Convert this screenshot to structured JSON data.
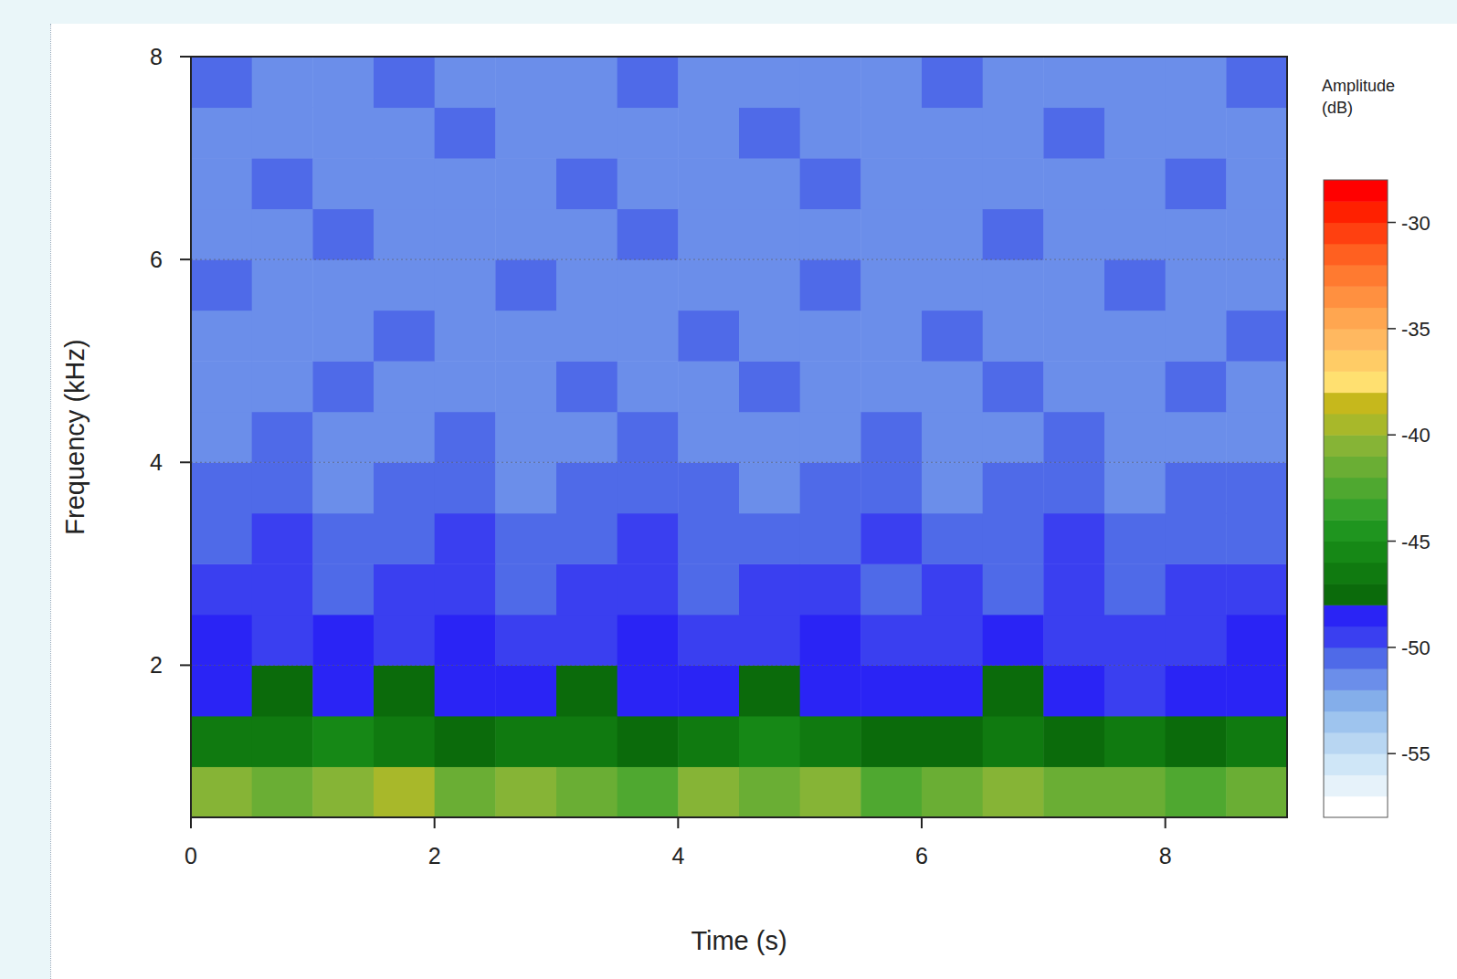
{
  "chart_data": {
    "type": "heatmap",
    "x_label": "Time (s)",
    "y_label": "Frequency (kHz)",
    "xlim": [
      0,
      9
    ],
    "ylim": [
      0.5,
      8
    ],
    "xticks": [
      0,
      2,
      4,
      6,
      8
    ],
    "yticks": [
      2,
      4,
      6,
      8
    ],
    "grid": true,
    "x": [
      0.25,
      0.75,
      1.25,
      1.75,
      2.25,
      2.75,
      3.25,
      3.75,
      4.25,
      4.75,
      5.25,
      5.75,
      6.25,
      6.75,
      7.25,
      7.75,
      8.25,
      8.75
    ],
    "y": [
      0.75,
      1.25,
      1.75,
      2.25,
      2.75,
      3.25,
      3.75,
      4.25,
      4.75,
      5.25,
      5.75,
      6.25,
      6.75,
      7.25,
      7.75
    ],
    "z": [
      [
        -41,
        -42,
        -41,
        -40,
        -42,
        -41,
        -42,
        -43,
        -41,
        -42,
        -41,
        -43,
        -42,
        -41,
        -42,
        -42,
        -43,
        -42
      ],
      [
        -47,
        -47,
        -46,
        -47,
        -48,
        -47,
        -47,
        -48,
        -47,
        -46,
        -47,
        -48,
        -48,
        -47,
        -48,
        -47,
        -48,
        -47
      ],
      [
        -49,
        -48,
        -49,
        -48,
        -49,
        -49,
        -48,
        -49,
        -49,
        -48,
        -49,
        -49,
        -49,
        -48,
        -49,
        -50,
        -49,
        -49
      ],
      [
        -49,
        -50,
        -49,
        -50,
        -49,
        -50,
        -50,
        -49,
        -50,
        -50,
        -49,
        -50,
        -50,
        -49,
        -50,
        -50,
        -50,
        -49
      ],
      [
        -50,
        -50,
        -51,
        -50,
        -50,
        -51,
        -50,
        -50,
        -51,
        -50,
        -50,
        -51,
        -50,
        -51,
        -50,
        -51,
        -50,
        -50
      ],
      [
        -51,
        -50,
        -51,
        -51,
        -50,
        -51,
        -51,
        -50,
        -51,
        -51,
        -51,
        -50,
        -51,
        -51,
        -50,
        -51,
        -51,
        -51
      ],
      [
        -51,
        -51,
        -52,
        -51,
        -51,
        -52,
        -51,
        -51,
        -51,
        -52,
        -51,
        -51,
        -52,
        -51,
        -51,
        -52,
        -51,
        -51
      ],
      [
        -52,
        -51,
        -52,
        -52,
        -51,
        -52,
        -52,
        -51,
        -52,
        -52,
        -52,
        -51,
        -52,
        -52,
        -51,
        -52,
        -52,
        -52
      ],
      [
        -52,
        -52,
        -51,
        -52,
        -52,
        -52,
        -51,
        -52,
        -52,
        -51,
        -52,
        -52,
        -52,
        -51,
        -52,
        -52,
        -51,
        -52
      ],
      [
        -52,
        -52,
        -52,
        -51,
        -52,
        -52,
        -52,
        -52,
        -51,
        -52,
        -52,
        -52,
        -51,
        -52,
        -52,
        -52,
        -52,
        -51
      ],
      [
        -51,
        -52,
        -52,
        -52,
        -52,
        -51,
        -52,
        -52,
        -52,
        -52,
        -51,
        -52,
        -52,
        -52,
        -52,
        -51,
        -52,
        -52
      ],
      [
        -52,
        -52,
        -51,
        -52,
        -52,
        -52,
        -52,
        -51,
        -52,
        -52,
        -52,
        -52,
        -52,
        -51,
        -52,
        -52,
        -52,
        -52
      ],
      [
        -52,
        -51,
        -52,
        -52,
        -52,
        -52,
        -51,
        -52,
        -52,
        -52,
        -51,
        -52,
        -52,
        -52,
        -52,
        -52,
        -51,
        -52
      ],
      [
        -52,
        -52,
        -52,
        -52,
        -51,
        -52,
        -52,
        -52,
        -52,
        -51,
        -52,
        -52,
        -52,
        -52,
        -51,
        -52,
        -52,
        -52
      ],
      [
        -51,
        -52,
        -52,
        -51,
        -52,
        -52,
        -52,
        -51,
        -52,
        -52,
        -52,
        -52,
        -51,
        -52,
        -52,
        -52,
        -52,
        -51
      ]
    ],
    "colorbar_label": "Amplitude (dB)",
    "colorbar_range": [
      -58,
      -28
    ],
    "colorbar_ticks": [
      -55,
      -50,
      -45,
      -40,
      -35,
      -30
    ],
    "colors": [
      "#ffffff",
      "#e6f2fa",
      "#cfe6f7",
      "#b8d6f2",
      "#9ec4ee",
      "#84aeea",
      "#6b8eea",
      "#4f6ae8",
      "#3a3ff0",
      "#2a24f5",
      "#0b6b0b",
      "#107a10",
      "#168816",
      "#1f951f",
      "#35a12a",
      "#4fa830",
      "#6aae34",
      "#86b436",
      "#a8b82a",
      "#c6b81c",
      "#ffe070",
      "#ffcc66",
      "#ffb860",
      "#ffa650",
      "#ff9040",
      "#ff7a30",
      "#ff6020",
      "#ff4010",
      "#ff2000",
      "#ff0000"
    ]
  }
}
